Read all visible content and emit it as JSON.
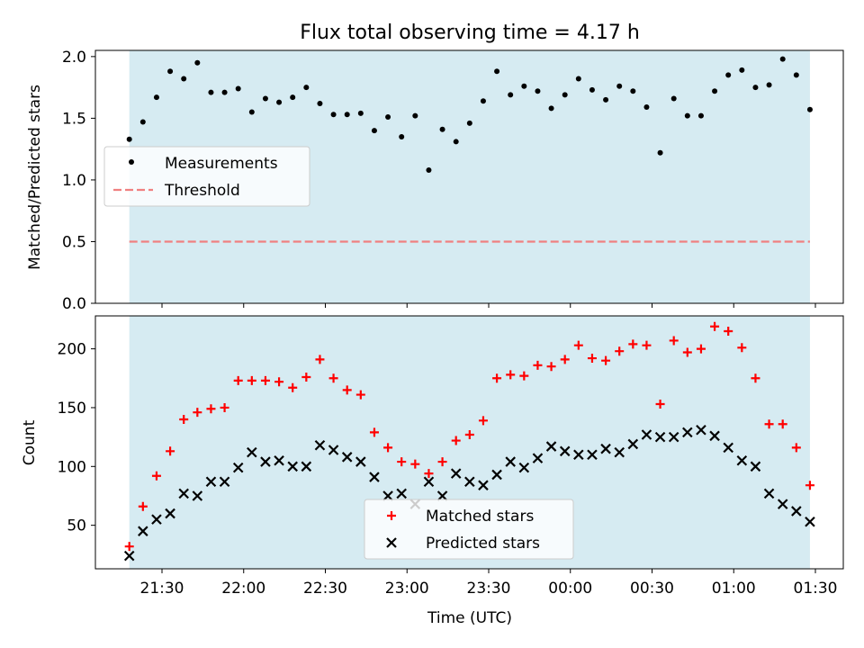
{
  "title": "Flux total observing time = 4.17 h",
  "colors": {
    "observing_span": "#add8e6",
    "measurements": "#000000",
    "threshold": "#f08080",
    "matched": "#ff0000",
    "predicted": "#000000",
    "legend_bg": "#ffffff",
    "axes": "#000000"
  },
  "chart_data": [
    {
      "type": "scatter",
      "ylabel": "Matched/Predicted stars",
      "xlabel": "",
      "x_ticks": [
        "21:30",
        "22:00",
        "22:30",
        "23:00",
        "23:30",
        "00:00",
        "00:30",
        "01:00",
        "01:30"
      ],
      "x_tick_labels_visible": false,
      "ylim": [
        0,
        2.05
      ],
      "y_ticks": [
        0.0,
        0.5,
        1.0,
        1.5,
        2.0
      ],
      "y_tick_labels": [
        "0.0",
        "0.5",
        "1.0",
        "1.5",
        "2.0"
      ],
      "observing_span": [
        "21:18",
        "01:28"
      ],
      "legend_position": "center-left",
      "threshold": {
        "name": "Threshold",
        "value": 0.5,
        "style": "dashed"
      },
      "series": [
        {
          "name": "Measurements",
          "marker": "dot",
          "x": [
            "21:18",
            "21:23",
            "21:28",
            "21:33",
            "21:38",
            "21:43",
            "21:48",
            "21:53",
            "21:58",
            "22:03",
            "22:08",
            "22:13",
            "22:18",
            "22:23",
            "22:28",
            "22:33",
            "22:38",
            "22:43",
            "22:48",
            "22:53",
            "22:58",
            "23:03",
            "23:08",
            "23:13",
            "23:18",
            "23:23",
            "23:28",
            "23:33",
            "23:38",
            "23:43",
            "23:48",
            "23:53",
            "23:58",
            "00:03",
            "00:08",
            "00:13",
            "00:18",
            "00:23",
            "00:28",
            "00:33",
            "00:38",
            "00:43",
            "00:48",
            "00:53",
            "00:58",
            "01:03",
            "01:08",
            "01:13",
            "01:18",
            "01:23",
            "01:28"
          ],
          "y": [
            1.33,
            1.47,
            1.67,
            1.88,
            1.82,
            1.95,
            1.71,
            1.71,
            1.74,
            1.55,
            1.66,
            1.63,
            1.67,
            1.75,
            1.62,
            1.53,
            1.53,
            1.54,
            1.4,
            1.51,
            1.35,
            1.52,
            1.08,
            1.41,
            1.31,
            1.46,
            1.64,
            1.88,
            1.69,
            1.76,
            1.72,
            1.58,
            1.69,
            1.82,
            1.73,
            1.65,
            1.76,
            1.72,
            1.59,
            1.22,
            1.66,
            1.52,
            1.52,
            1.72,
            1.85,
            1.89,
            1.75,
            1.77,
            1.98,
            1.85,
            1.57
          ]
        }
      ]
    },
    {
      "type": "scatter",
      "ylabel": "Count",
      "xlabel": "Time (UTC)",
      "x_ticks": [
        "21:30",
        "22:00",
        "22:30",
        "23:00",
        "23:30",
        "00:00",
        "00:30",
        "01:00",
        "01:30"
      ],
      "x_tick_labels_visible": true,
      "ylim": [
        13,
        228
      ],
      "y_ticks": [
        50,
        100,
        150,
        200
      ],
      "y_tick_labels": [
        "50",
        "100",
        "150",
        "200"
      ],
      "observing_span": [
        "21:18",
        "01:28"
      ],
      "legend_position": "lower-center",
      "series": [
        {
          "name": "Matched stars",
          "marker": "plus",
          "x": [
            "21:18",
            "21:23",
            "21:28",
            "21:33",
            "21:38",
            "21:43",
            "21:48",
            "21:53",
            "21:58",
            "22:03",
            "22:08",
            "22:13",
            "22:18",
            "22:23",
            "22:28",
            "22:33",
            "22:38",
            "22:43",
            "22:48",
            "22:53",
            "22:58",
            "23:03",
            "23:08",
            "23:13",
            "23:18",
            "23:23",
            "23:28",
            "23:33",
            "23:38",
            "23:43",
            "23:48",
            "23:53",
            "23:58",
            "00:03",
            "00:08",
            "00:13",
            "00:18",
            "00:23",
            "00:28",
            "00:33",
            "00:38",
            "00:43",
            "00:48",
            "00:53",
            "00:58",
            "01:03",
            "01:08",
            "01:13",
            "01:18",
            "01:23",
            "01:28"
          ],
          "y": [
            32,
            66,
            92,
            113,
            140,
            146,
            149,
            150,
            173,
            173,
            173,
            172,
            167,
            176,
            191,
            175,
            165,
            161,
            129,
            116,
            104,
            102,
            94,
            104,
            122,
            127,
            139,
            175,
            178,
            177,
            186,
            185,
            191,
            203,
            192,
            190,
            198,
            204,
            203,
            153,
            207,
            197,
            200,
            219,
            215,
            201,
            175,
            136,
            136,
            116,
            84
          ]
        },
        {
          "name": "Predicted stars",
          "marker": "x",
          "x": [
            "21:18",
            "21:23",
            "21:28",
            "21:33",
            "21:38",
            "21:43",
            "21:48",
            "21:53",
            "21:58",
            "22:03",
            "22:08",
            "22:13",
            "22:18",
            "22:23",
            "22:28",
            "22:33",
            "22:38",
            "22:43",
            "22:48",
            "22:53",
            "22:58",
            "23:03",
            "23:08",
            "23:13",
            "23:18",
            "23:23",
            "23:28",
            "23:33",
            "23:38",
            "23:43",
            "23:48",
            "23:53",
            "23:58",
            "00:03",
            "00:08",
            "00:13",
            "00:18",
            "00:23",
            "00:28",
            "00:33",
            "00:38",
            "00:43",
            "00:48",
            "00:53",
            "00:58",
            "01:03",
            "01:08",
            "01:13",
            "01:18",
            "01:23",
            "01:28"
          ],
          "y": [
            24,
            45,
            55,
            60,
            77,
            75,
            87,
            87,
            99,
            112,
            104,
            105,
            100,
            100,
            118,
            114,
            108,
            104,
            91,
            75,
            77,
            68,
            87,
            75,
            94,
            87,
            84,
            93,
            104,
            99,
            107,
            117,
            113,
            110,
            110,
            115,
            112,
            119,
            127,
            125,
            125,
            129,
            131,
            126,
            116,
            105,
            100,
            77,
            68,
            62,
            53
          ]
        }
      ]
    }
  ]
}
